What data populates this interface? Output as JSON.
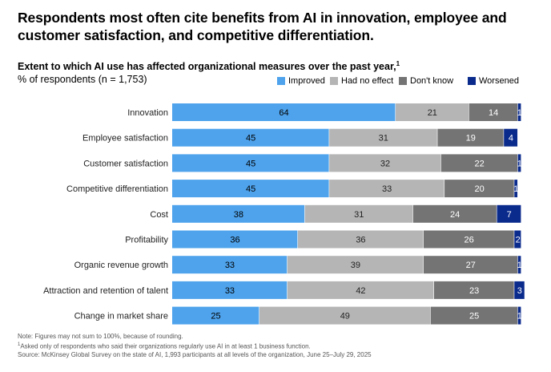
{
  "title": "Respondents most often cite benefits from AI in innovation, employee and customer satisfaction, and competitive differentiation.",
  "subtitle": "Extent to which AI use has affected organizational measures over the past year,",
  "subtitle_note": "1",
  "units_label": "% of respondents (n = 1,753)",
  "colors": {
    "improved": "#4ea3ec",
    "no_effect": "#b5b5b5",
    "dont_know": "#747474",
    "worsened": "#0a2a8c"
  },
  "chart_data": {
    "type": "bar",
    "orientation": "horizontal",
    "stacked": true,
    "title": "Extent to which AI use has affected organizational measures over the past year",
    "xlabel": "",
    "ylabel": "% of respondents (n = 1,753)",
    "xlim": [
      0,
      100
    ],
    "legend_position": "top-right",
    "categories": [
      "Innovation",
      "Employee satisfaction",
      "Customer satisfaction",
      "Competitive differentiation",
      "Cost",
      "Profitability",
      "Organic revenue growth",
      "Attraction and retention of talent",
      "Change in market share"
    ],
    "series": [
      {
        "name": "Improved",
        "color_key": "improved",
        "values": [
          64,
          45,
          45,
          45,
          38,
          36,
          33,
          33,
          25
        ]
      },
      {
        "name": "Had no effect",
        "color_key": "no_effect",
        "values": [
          21,
          31,
          32,
          33,
          31,
          36,
          39,
          42,
          49
        ]
      },
      {
        "name": "Don't know",
        "color_key": "dont_know",
        "values": [
          14,
          19,
          22,
          20,
          24,
          26,
          27,
          23,
          25
        ]
      },
      {
        "name": "Worsened",
        "color_key": "worsened",
        "values": [
          1,
          4,
          1,
          1,
          7,
          2,
          1,
          3,
          1
        ]
      }
    ]
  },
  "footnotes": {
    "note": "Note: Figures may not sum to 100%, because of rounding.",
    "note1_marker": "1",
    "note1": "Asked only of respondents who said their organizations regularly use AI in at least 1 business function.",
    "source": "Source: McKinsey Global Survey on the state of AI, 1,993 participants at all levels of the organization, June 25–July 29, 2025"
  }
}
